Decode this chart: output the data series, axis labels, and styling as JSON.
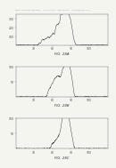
{
  "header_text": "Patent Application Publication    Aug. 26, 2004   Sheet 29 of 53    US 2004/0161741 A1",
  "fig_labels": [
    "FIG. 28A",
    "FIG. 28B",
    "FIG. 28C"
  ],
  "bg_color": "#f5f5f0",
  "panel_bg": "#f5f5f0",
  "line_color": "#444444",
  "ylim_a": [
    0,
    350
  ],
  "ylim_b": [
    0,
    100
  ],
  "ylim_c": [
    0,
    100
  ],
  "xlim": [
    60,
    110
  ],
  "yticks_a": [
    100,
    200,
    300
  ],
  "yticks_bc": [
    50,
    100
  ],
  "xticks": [
    70,
    80,
    90,
    100
  ]
}
